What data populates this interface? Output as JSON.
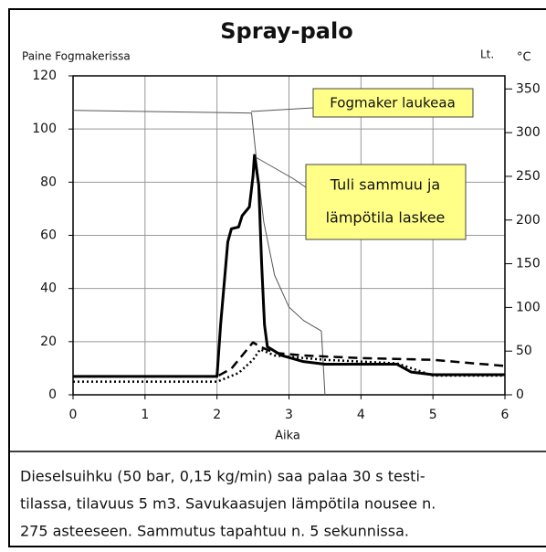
{
  "chart_data": {
    "type": "line",
    "title": "Spray-palo",
    "ylabel": "Paine Fogmakerissa",
    "y2label_units": [
      "Lt.",
      "°C"
    ],
    "xlabel": "Aika",
    "xlim": [
      0,
      6
    ],
    "xticks": [
      0,
      1,
      2,
      3,
      4,
      5,
      6
    ],
    "ylim": [
      0,
      120
    ],
    "yticks": [
      0,
      20,
      40,
      60,
      80,
      100,
      120
    ],
    "y2lim": [
      0,
      365
    ],
    "y2ticks": [
      0,
      50,
      100,
      150,
      200,
      250,
      300,
      350
    ],
    "grid": true,
    "series": [
      {
        "color": "#555555",
        "width": 1,
        "dash": "none",
        "axis": "y",
        "x": [
          0,
          2.48,
          2.55,
          2.65,
          2.8,
          3.0,
          3.2,
          3.45,
          3.5
        ],
        "values": [
          107,
          106,
          88,
          65,
          45,
          33,
          28,
          24,
          0
        ]
      },
      {
        "color": "#000000",
        "width": 3,
        "dash": "none",
        "axis": "y2",
        "x": [
          0,
          2.0,
          2.05,
          2.15,
          2.2,
          2.3,
          2.35,
          2.45,
          2.5,
          2.52,
          2.58,
          2.62,
          2.66,
          2.7,
          2.9,
          3.2,
          3.5,
          4.5,
          4.7,
          5,
          6
        ],
        "values": [
          21,
          21,
          80,
          175,
          190,
          192,
          205,
          215,
          250,
          274,
          240,
          150,
          80,
          55,
          45,
          38,
          35,
          35,
          26,
          23,
          23
        ]
      },
      {
        "color": "#000000",
        "width": 2.5,
        "dash": "10 6",
        "axis": "y2",
        "x": [
          0,
          2.0,
          2.2,
          2.4,
          2.5,
          2.6,
          2.8,
          3.2,
          4,
          5,
          6
        ],
        "values": [
          21,
          21,
          30,
          50,
          60,
          55,
          48,
          45,
          42,
          40,
          33
        ]
      },
      {
        "color": "#000000",
        "width": 2.5,
        "dash": "2 3",
        "axis": "y2",
        "x": [
          0,
          2.0,
          2.3,
          2.5,
          2.6,
          2.8,
          3.5,
          4.5,
          5,
          6
        ],
        "values": [
          15,
          15,
          25,
          40,
          52,
          45,
          40,
          36,
          22,
          22
        ]
      }
    ],
    "annotations": [
      {
        "lines": [
          "Fogmaker laukeaa"
        ]
      },
      {
        "lines": [
          "Tuli sammuu ja",
          "lämpötila laskee"
        ]
      }
    ],
    "caption": [
      "Dieselsuihku (50 bar, 0,15 kg/min) saa palaa 30 s testi-",
      "tilassa, tilavuus 5 m3. Savukaasujen lämpötila nousee n.",
      "275 asteeseen. Sammutus tapahtuu n. 5 sekunnissa."
    ]
  }
}
